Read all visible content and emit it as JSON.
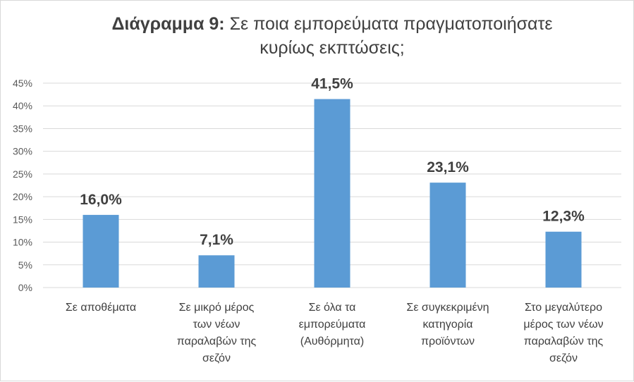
{
  "chart_data": {
    "type": "bar",
    "title_prefix": "Διάγραμμα 9:",
    "title_rest_line1": "Σε ποια εμπορεύματα πραγματοποιήσατε",
    "title_line2": "κυρίως εκπτώσεις;",
    "categories": [
      [
        "Σε αποθέματα"
      ],
      [
        "Σε μικρό μέρος",
        "των νέων",
        "παραλαβών της",
        "σεζόν"
      ],
      [
        "Σε όλα τα",
        "εμπορεύματα",
        "(Αυθόρμητα)"
      ],
      [
        "Σε συγκεκριμένη",
        "κατηγορία",
        "προϊόντων"
      ],
      [
        "Στο μεγαλύτερο",
        "μέρος των νέων",
        "παραλαβών της",
        "σεζόν"
      ]
    ],
    "values": [
      16.0,
      7.1,
      41.5,
      23.1,
      12.3
    ],
    "data_labels": [
      "16,0%",
      "7,1%",
      "41,5%",
      "23,1%",
      "12,3%"
    ],
    "y_ticks": [
      "0%",
      "5%",
      "10%",
      "15%",
      "20%",
      "25%",
      "30%",
      "35%",
      "40%",
      "45%"
    ],
    "ylim": [
      0,
      45
    ],
    "grid": true,
    "bar_color": "#5b9bd5",
    "grid_color": "#d9d9d9"
  }
}
